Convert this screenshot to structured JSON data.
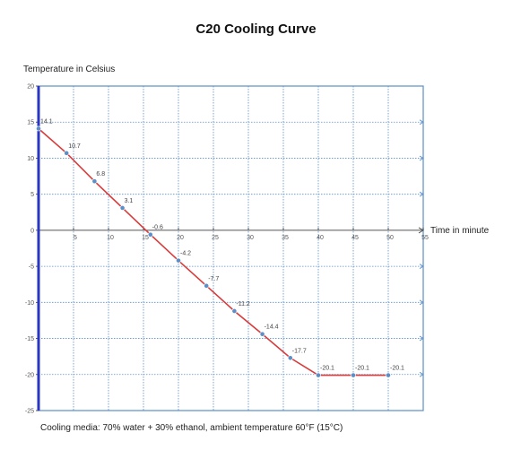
{
  "chart_data": {
    "type": "line",
    "title": "C20 Cooling Curve",
    "xlabel": "Time in minute",
    "ylabel": "Temperature in Celsius",
    "caption": "Cooling media: 70% water + 30% ethanol, ambient temperature 60°F (15°C)",
    "xlim": [
      0,
      55
    ],
    "ylim": [
      -25,
      20
    ],
    "x_ticks": [
      "5",
      "10",
      "15",
      "20",
      "25",
      "30",
      "35",
      "40",
      "45",
      "50",
      "55"
    ],
    "y_ticks": [
      "20",
      "15",
      "10",
      "5",
      "0",
      "-5",
      "-10",
      "-15",
      "-20",
      "-25"
    ],
    "grid": true,
    "series": [
      {
        "x": [
          0,
          4,
          8,
          12,
          16,
          20,
          24,
          28,
          32,
          36,
          40,
          45,
          50
        ],
        "y": [
          14.1,
          10.7,
          6.8,
          3.1,
          -0.6,
          -4.2,
          -7.7,
          -11.2,
          -14.4,
          -17.7,
          -20.1,
          -20.1,
          -20.1
        ],
        "labels": [
          "14.1",
          "10.7",
          "6.8",
          "3.1",
          "-0.6",
          "-4.2",
          "-7.7",
          "-11.2",
          "-14.4",
          "-17.7",
          "-20.1",
          "-20.1",
          "-20.1"
        ]
      }
    ],
    "colors": {
      "line": "#d93b3b",
      "marker": "#5b8fc9",
      "grid": "#5b8fc9",
      "yaxis": "#2a35c4"
    }
  }
}
